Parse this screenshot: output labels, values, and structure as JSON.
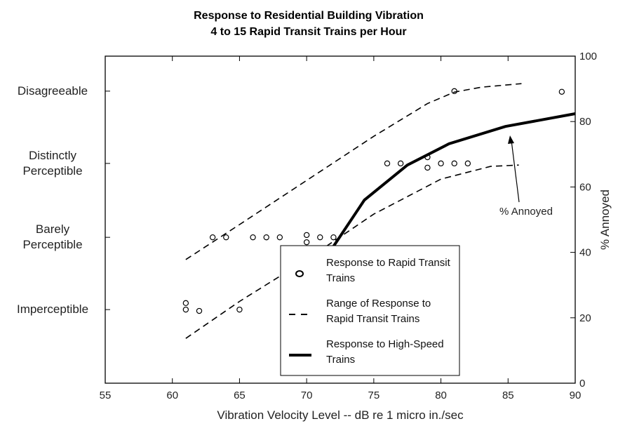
{
  "chart_data": {
    "type": "scatter",
    "title": "Response to Residential Building Vibration",
    "subtitle": "4 to 15 Rapid Transit Trains per Hour",
    "xlabel": "Vibration Velocity Level -- dB re 1 micro in./sec",
    "y2label": "% Annoyed",
    "annotation": "% Annoyed",
    "xlim": [
      55,
      90
    ],
    "xticks": [
      55,
      60,
      65,
      70,
      75,
      80,
      85,
      90
    ],
    "ylim": [
      0,
      100
    ],
    "yticks": [
      {
        "value": 22.5,
        "label": "Imperceptible"
      },
      {
        "value": 44.6,
        "label": "Barely Perceptible"
      },
      {
        "value": 67.2,
        "label": "Distinctly Perceptible"
      },
      {
        "value": 89.3,
        "label": "Disagreeable"
      }
    ],
    "y2lim": [
      0,
      100
    ],
    "y2ticks": [
      0,
      20,
      40,
      60,
      80,
      100
    ],
    "series": [
      {
        "name": "Response to Rapid Transit Trains",
        "color": "#000000",
        "style": "marker",
        "x": [
          61,
          61,
          62,
          65,
          63,
          64,
          66,
          67,
          68,
          70,
          70,
          71,
          72,
          76,
          77,
          79,
          79,
          80,
          81,
          82,
          81,
          89
        ],
        "values": [
          24.5,
          22.5,
          22.1,
          22.5,
          44.6,
          44.6,
          44.6,
          44.6,
          44.6,
          45.3,
          43.1,
          44.6,
          44.6,
          67.2,
          67.2,
          69.1,
          65.9,
          67.2,
          67.2,
          67.2,
          89.3,
          89.1
        ]
      },
      {
        "name": "Range of Response to Rapid Transit Trains",
        "color": "#000000",
        "style": "dashed",
        "bounds": [
          {
            "x": [
              61,
              65,
              70,
              75,
              79,
              81,
              83,
              86
            ],
            "values": [
              37.8,
              48.5,
              62,
              75.5,
              85.5,
              89,
              90.5,
              91.6
            ]
          },
          {
            "x": [
              61,
              65,
              70,
              75,
              80,
              83.7,
              85.8
            ],
            "values": [
              13.7,
              25,
              37.8,
              51.7,
              62.4,
              66.3,
              66.7
            ]
          }
        ]
      },
      {
        "name": "Response to High-Speed Trains",
        "color": "#000000",
        "style": "thick",
        "axis": "y2",
        "x": [
          70.2,
          71.7,
          74.3,
          77.5,
          80.6,
          84.8,
          90
        ],
        "values": [
          24.5,
          40,
          56,
          66.7,
          73.2,
          78.5,
          82.4
        ]
      }
    ]
  }
}
